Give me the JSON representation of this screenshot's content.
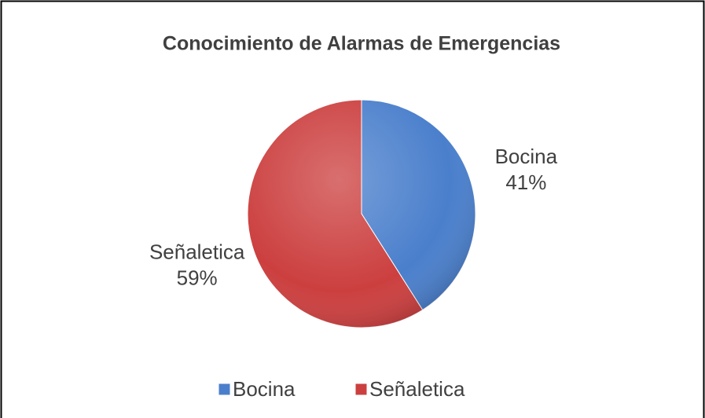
{
  "chart_data": {
    "type": "pie",
    "title": "Conocimiento de Alarmas de Emergencias",
    "categories": [
      "Bocina",
      "Señaletica"
    ],
    "values": [
      41,
      59
    ],
    "value_labels": [
      "41%",
      "59%"
    ],
    "colors": [
      "#4a7fcc",
      "#cc3f3f"
    ],
    "legend": "bottom"
  }
}
